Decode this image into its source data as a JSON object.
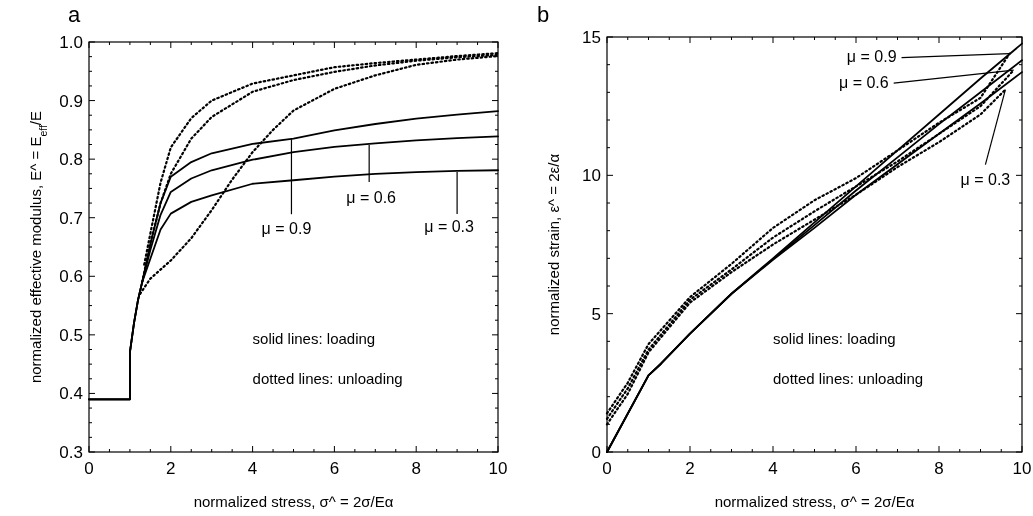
{
  "chart_data": [
    {
      "type": "line",
      "title": "a",
      "xlabel": "normalized stress,  σ^ = 2σ/Eα",
      "ylabel": "normalized effective modulus, E^ = E$_{eff}$/E",
      "xlim": [
        0,
        10
      ],
      "ylim": [
        0.3,
        1.0
      ],
      "xticks": [
        0,
        {
          "value": 0.5,
          "label": null
        },
        {
          "value": 1,
          "label": null
        },
        {
          "value": 1.5,
          "label": null
        },
        2,
        {
          "value": 2.5,
          "label": null
        },
        {
          "value": 3,
          "label": null
        },
        {
          "value": 3.5,
          "label": null
        },
        4,
        {
          "value": 4.5,
          "label": null
        },
        {
          "value": 5,
          "label": null
        },
        {
          "value": 5.5,
          "label": null
        },
        6,
        {
          "value": 6.5,
          "label": null
        },
        {
          "value": 7,
          "label": null
        },
        {
          "value": 7.5,
          "label": null
        },
        8,
        {
          "value": 8.5,
          "label": null
        },
        {
          "value": 9,
          "label": null
        },
        {
          "value": 9.5,
          "label": null
        },
        10
      ],
      "yticks": [
        0.3,
        {
          "value": 0.325,
          "label": null
        },
        {
          "value": 0.35,
          "label": null
        },
        {
          "value": 0.375,
          "label": null
        },
        0.4,
        {
          "value": 0.425,
          "label": null
        },
        {
          "value": 0.45,
          "label": null
        },
        {
          "value": 0.475,
          "label": null
        },
        0.5,
        {
          "value": 0.525,
          "label": null
        },
        {
          "value": 0.55,
          "label": null
        },
        {
          "value": 0.575,
          "label": null
        },
        0.6,
        {
          "value": 0.625,
          "label": null
        },
        {
          "value": 0.65,
          "label": null
        },
        {
          "value": 0.675,
          "label": null
        },
        0.7,
        {
          "value": 0.725,
          "label": null
        },
        {
          "value": 0.75,
          "label": null
        },
        {
          "value": 0.775,
          "label": null
        },
        0.8,
        {
          "value": 0.825,
          "label": null
        },
        {
          "value": 0.85,
          "label": null
        },
        {
          "value": 0.875,
          "label": null
        },
        0.9,
        {
          "value": 0.925,
          "label": null
        },
        {
          "value": 0.95,
          "label": null
        },
        {
          "value": 0.975,
          "label": null
        },
        {
          "value": 1,
          "label": "1.0"
        }
      ],
      "series": [
        {
          "color": "#000000",
          "line_style": "solid",
          "x": [
            0,
            1,
            1,
            1.1,
            1.2,
            1.3,
            1.5,
            1.75,
            2,
            2.5,
            3,
            4,
            5,
            6,
            7,
            8,
            9,
            10
          ],
          "values": [
            0.39,
            0.39,
            0.47,
            0.52,
            0.56,
            0.59,
            0.655,
            0.725,
            0.77,
            0.795,
            0.81,
            0.826,
            0.835,
            0.849,
            0.86,
            0.869,
            0.876,
            0.882
          ]
        },
        {
          "color": "#000000",
          "line_style": "solid",
          "x": [
            0,
            1,
            1,
            1.1,
            1.2,
            1.3,
            1.5,
            1.75,
            2,
            2.5,
            3,
            4,
            5,
            6,
            7,
            8,
            9,
            10
          ],
          "values": [
            0.39,
            0.39,
            0.47,
            0.52,
            0.56,
            0.59,
            0.645,
            0.705,
            0.744,
            0.767,
            0.781,
            0.799,
            0.812,
            0.821,
            0.827,
            0.832,
            0.836,
            0.839
          ]
        },
        {
          "color": "#000000",
          "line_style": "solid",
          "x": [
            0,
            1,
            1,
            1.1,
            1.2,
            1.3,
            1.5,
            1.75,
            2,
            2.5,
            3,
            4,
            5,
            6,
            7,
            8,
            9,
            10
          ],
          "values": [
            0.39,
            0.39,
            0.47,
            0.52,
            0.56,
            0.59,
            0.63,
            0.68,
            0.707,
            0.727,
            0.738,
            0.758,
            0.764,
            0.77,
            0.775,
            0.778,
            0.78,
            0.781
          ]
        },
        {
          "color": "#000000",
          "line_style": "dotted",
          "x": [
            1.35,
            1.5,
            1.75,
            2,
            2.5,
            3,
            4,
            5,
            6,
            7,
            8,
            9,
            10
          ],
          "values": [
            0.62,
            0.673,
            0.76,
            0.82,
            0.87,
            0.9,
            0.929,
            0.943,
            0.957,
            0.964,
            0.97,
            0.976,
            0.981
          ]
        },
        {
          "color": "#000000",
          "line_style": "dotted",
          "x": [
            1.3,
            1.5,
            1.75,
            2,
            2.5,
            3,
            4,
            5,
            6,
            7,
            8,
            9,
            10
          ],
          "values": [
            0.59,
            0.656,
            0.725,
            0.775,
            0.835,
            0.872,
            0.915,
            0.935,
            0.949,
            0.96,
            0.968,
            0.974,
            0.978
          ]
        },
        {
          "color": "#000000",
          "line_style": "dotted",
          "x": [
            1.25,
            1.5,
            2,
            2.5,
            3,
            3.5,
            4,
            4.5,
            5,
            6,
            7,
            8,
            9,
            10
          ],
          "values": [
            0.57,
            0.596,
            0.627,
            0.665,
            0.713,
            0.765,
            0.812,
            0.85,
            0.883,
            0.92,
            0.943,
            0.961,
            0.97,
            0.976
          ]
        }
      ],
      "annotations": [
        {
          "text": "μ = 0.9",
          "x": 4.95,
          "y": 0.834
        },
        {
          "text": "μ = 0.6",
          "x": 6.85,
          "y": 0.824
        },
        {
          "text": "μ = 0.3",
          "x": 9.0,
          "y": 0.778
        },
        "solid lines: loading",
        "dotted lines: unloading"
      ]
    },
    {
      "type": "line",
      "title": "b",
      "xlabel": "normalized stress,  σ^ = 2σ/Eα",
      "ylabel": "normalized strain, ε^ = 2ε/α",
      "xlim": [
        0,
        10
      ],
      "ylim": [
        0,
        15
      ],
      "xticks": [
        0,
        {
          "value": 0.5,
          "label": null
        },
        {
          "value": 1,
          "label": null
        },
        {
          "value": 1.5,
          "label": null
        },
        2,
        {
          "value": 2.5,
          "label": null
        },
        {
          "value": 3,
          "label": null
        },
        {
          "value": 3.5,
          "label": null
        },
        4,
        {
          "value": 4.5,
          "label": null
        },
        {
          "value": 5,
          "label": null
        },
        {
          "value": 5.5,
          "label": null
        },
        6,
        {
          "value": 6.5,
          "label": null
        },
        {
          "value": 7,
          "label": null
        },
        {
          "value": 7.5,
          "label": null
        },
        8,
        {
          "value": 8.5,
          "label": null
        },
        {
          "value": 9,
          "label": null
        },
        {
          "value": 9.5,
          "label": null
        },
        10
      ],
      "yticks": [
        0,
        {
          "value": 1,
          "label": null
        },
        {
          "value": 2,
          "label": null
        },
        {
          "value": 3,
          "label": null
        },
        {
          "value": 4,
          "label": null
        },
        5,
        {
          "value": 6,
          "label": null
        },
        {
          "value": 7,
          "label": null
        },
        {
          "value": 8,
          "label": null
        },
        {
          "value": 9,
          "label": null
        },
        10,
        {
          "value": 11,
          "label": null
        },
        {
          "value": 12,
          "label": null
        },
        {
          "value": 13,
          "label": null
        },
        {
          "value": 14,
          "label": null
        },
        15
      ],
      "series": [
        {
          "color": "#000000",
          "line_style": "solid",
          "x": [
            0,
            1,
            1.3,
            2,
            3,
            4,
            5,
            6,
            7,
            8,
            9,
            10
          ],
          "values": [
            0,
            2.77,
            3.19,
            4.28,
            5.72,
            7.0,
            8.3,
            9.6,
            10.9,
            12.2,
            13.5,
            14.76
          ]
        },
        {
          "color": "#000000",
          "line_style": "solid",
          "x": [
            0,
            1,
            1.3,
            2,
            3,
            4,
            5,
            6,
            7,
            8,
            9,
            10
          ],
          "values": [
            0,
            2.77,
            3.19,
            4.28,
            5.72,
            6.97,
            8.2,
            9.45,
            10.65,
            11.85,
            13.0,
            14.16
          ]
        },
        {
          "color": "#000000",
          "line_style": "solid",
          "x": [
            0,
            1,
            1.3,
            2,
            3,
            4,
            5,
            6,
            7,
            8,
            9,
            10
          ],
          "values": [
            0,
            2.77,
            3.19,
            4.28,
            5.72,
            6.95,
            8.1,
            9.3,
            10.4,
            11.5,
            12.6,
            13.73
          ]
        },
        {
          "color": "#000000",
          "line_style": "dotted",
          "x": [
            0,
            0.5,
            1,
            2,
            3,
            4,
            5,
            6,
            7,
            8,
            9,
            9.7
          ],
          "values": [
            1.4,
            2.5,
            3.9,
            5.6,
            6.8,
            8.1,
            9.1,
            9.9,
            10.9,
            11.9,
            12.8,
            14.4
          ]
        },
        {
          "color": "#000000",
          "line_style": "dotted",
          "x": [
            0,
            0.5,
            1,
            2,
            3,
            4,
            5,
            6,
            7,
            8,
            9,
            9.8
          ],
          "values": [
            1.2,
            2.3,
            3.7,
            5.5,
            6.6,
            7.75,
            8.7,
            9.6,
            10.5,
            11.5,
            12.5,
            13.8
          ]
        },
        {
          "color": "#000000",
          "line_style": "dotted",
          "x": [
            0,
            0.5,
            1,
            2,
            3,
            4,
            5,
            6,
            7,
            8,
            9,
            9.6
          ],
          "values": [
            1.0,
            2.1,
            3.6,
            5.4,
            6.5,
            7.5,
            8.4,
            9.3,
            10.3,
            11.2,
            12.2,
            13.1
          ]
        }
      ],
      "annotations": [
        {
          "text": "μ = 0.9",
          "x": 9.7,
          "y": 14.4
        },
        {
          "text": "μ = 0.6",
          "x": 9.8,
          "y": 13.8
        },
        {
          "text": "μ = 0.3",
          "x": 9.6,
          "y": 13.1
        },
        "solid lines: loading",
        "dotted lines: unloading"
      ]
    }
  ]
}
